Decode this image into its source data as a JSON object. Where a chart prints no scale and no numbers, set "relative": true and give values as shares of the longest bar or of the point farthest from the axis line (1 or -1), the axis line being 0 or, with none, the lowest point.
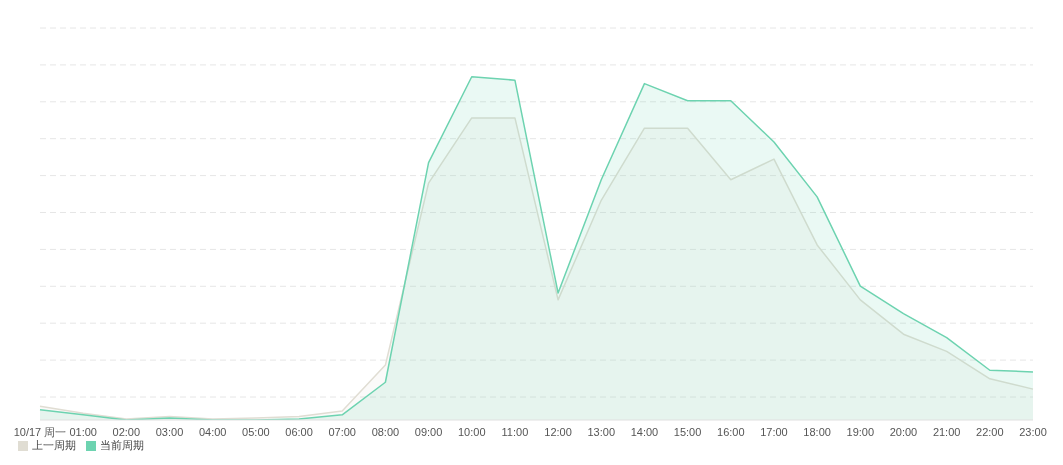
{
  "chart_data": {
    "type": "area",
    "relative": true,
    "grid": "y",
    "legend": "bottom left",
    "marker": "none",
    "line_style": "solid",
    "categories": [
      "10/17 周一",
      "01:00",
      "02:00",
      "03:00",
      "04:00",
      "05:00",
      "06:00",
      "07:00",
      "08:00",
      "09:00",
      "10:00",
      "11:00",
      "12:00",
      "13:00",
      "14:00",
      "15:00",
      "16:00",
      "17:00",
      "18:00",
      "19:00",
      "20:00",
      "21:00",
      "22:00",
      "23:00"
    ],
    "series": [
      {
        "name": "上一周期",
        "color": "#e0ddd3",
        "values": [
          0.04,
          0.02,
          0.003,
          0.01,
          0.003,
          0.006,
          0.01,
          0.026,
          0.16,
          0.69,
          0.88,
          0.88,
          0.35,
          0.64,
          0.85,
          0.85,
          0.7,
          0.76,
          0.51,
          0.35,
          0.25,
          0.2,
          0.12,
          0.09
        ]
      },
      {
        "name": "当前周期",
        "color": "#6dd3b0",
        "values": [
          0.03,
          0.015,
          0,
          0.006,
          0,
          0,
          0.003,
          0.015,
          0.11,
          0.75,
          1,
          0.99,
          0.37,
          0.7,
          0.98,
          0.93,
          0.93,
          0.81,
          0.65,
          0.39,
          0.31,
          0.24,
          0.145,
          0.14
        ]
      }
    ]
  }
}
